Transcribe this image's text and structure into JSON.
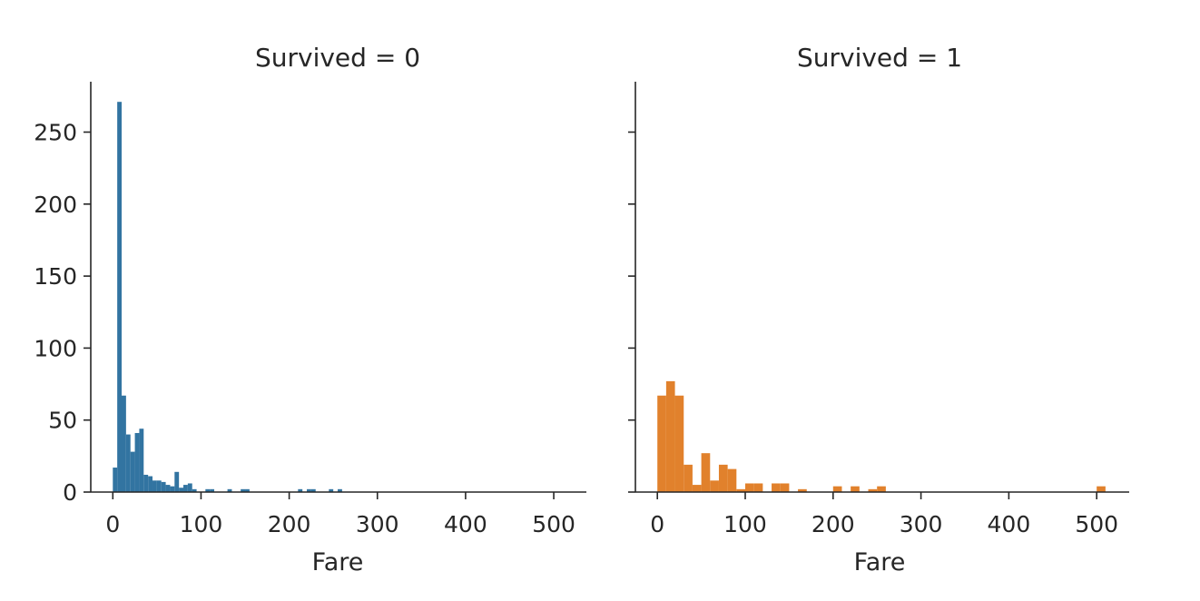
{
  "chart_data": [
    {
      "type": "bar",
      "title": "Survived = 0",
      "xlabel": "Fare",
      "ylabel": "",
      "xlim": [
        -25,
        537
      ],
      "ylim": [
        0,
        285
      ],
      "xticks": [
        0,
        100,
        200,
        300,
        400,
        500
      ],
      "yticks": [
        0,
        50,
        100,
        150,
        200,
        250
      ],
      "color": "#3274a1",
      "bins": [
        {
          "x0": 0,
          "x1": 5,
          "value": 17
        },
        {
          "x0": 5,
          "x1": 10,
          "value": 271
        },
        {
          "x0": 10,
          "x1": 15,
          "value": 67
        },
        {
          "x0": 15,
          "x1": 20,
          "value": 40
        },
        {
          "x0": 20,
          "x1": 25,
          "value": 28
        },
        {
          "x0": 25,
          "x1": 30,
          "value": 41
        },
        {
          "x0": 30,
          "x1": 35,
          "value": 44
        },
        {
          "x0": 35,
          "x1": 40,
          "value": 12
        },
        {
          "x0": 40,
          "x1": 45,
          "value": 11
        },
        {
          "x0": 45,
          "x1": 50,
          "value": 8
        },
        {
          "x0": 50,
          "x1": 55,
          "value": 8
        },
        {
          "x0": 55,
          "x1": 60,
          "value": 7
        },
        {
          "x0": 60,
          "x1": 65,
          "value": 5
        },
        {
          "x0": 65,
          "x1": 70,
          "value": 4
        },
        {
          "x0": 70,
          "x1": 75,
          "value": 14
        },
        {
          "x0": 75,
          "x1": 80,
          "value": 3
        },
        {
          "x0": 80,
          "x1": 85,
          "value": 5
        },
        {
          "x0": 85,
          "x1": 90,
          "value": 6
        },
        {
          "x0": 90,
          "x1": 95,
          "value": 2
        },
        {
          "x0": 105,
          "x1": 110,
          "value": 2
        },
        {
          "x0": 110,
          "x1": 115,
          "value": 2
        },
        {
          "x0": 130,
          "x1": 135,
          "value": 2
        },
        {
          "x0": 145,
          "x1": 150,
          "value": 2
        },
        {
          "x0": 150,
          "x1": 155,
          "value": 2
        },
        {
          "x0": 210,
          "x1": 215,
          "value": 2
        },
        {
          "x0": 220,
          "x1": 225,
          "value": 2
        },
        {
          "x0": 225,
          "x1": 230,
          "value": 2
        },
        {
          "x0": 245,
          "x1": 250,
          "value": 2
        },
        {
          "x0": 255,
          "x1": 260,
          "value": 2
        }
      ]
    },
    {
      "type": "bar",
      "title": "Survived = 1",
      "xlabel": "Fare",
      "ylabel": "",
      "xlim": [
        -25,
        537
      ],
      "ylim": [
        0,
        285
      ],
      "xticks": [
        0,
        100,
        200,
        300,
        400,
        500
      ],
      "yticks": [
        0,
        50,
        100,
        150,
        200,
        250
      ],
      "color": "#e1812c",
      "bins": [
        {
          "x0": 0,
          "x1": 10,
          "value": 67
        },
        {
          "x0": 10,
          "x1": 20,
          "value": 77
        },
        {
          "x0": 20,
          "x1": 30,
          "value": 67
        },
        {
          "x0": 30,
          "x1": 40,
          "value": 19
        },
        {
          "x0": 40,
          "x1": 50,
          "value": 5
        },
        {
          "x0": 50,
          "x1": 60,
          "value": 27
        },
        {
          "x0": 60,
          "x1": 70,
          "value": 8
        },
        {
          "x0": 70,
          "x1": 80,
          "value": 19
        },
        {
          "x0": 80,
          "x1": 90,
          "value": 16
        },
        {
          "x0": 90,
          "x1": 100,
          "value": 2
        },
        {
          "x0": 100,
          "x1": 110,
          "value": 6
        },
        {
          "x0": 110,
          "x1": 120,
          "value": 6
        },
        {
          "x0": 130,
          "x1": 140,
          "value": 6
        },
        {
          "x0": 140,
          "x1": 150,
          "value": 6
        },
        {
          "x0": 160,
          "x1": 170,
          "value": 2
        },
        {
          "x0": 200,
          "x1": 210,
          "value": 4
        },
        {
          "x0": 220,
          "x1": 230,
          "value": 4
        },
        {
          "x0": 240,
          "x1": 250,
          "value": 2
        },
        {
          "x0": 250,
          "x1": 260,
          "value": 4
        },
        {
          "x0": 500,
          "x1": 510,
          "value": 4
        }
      ]
    }
  ]
}
